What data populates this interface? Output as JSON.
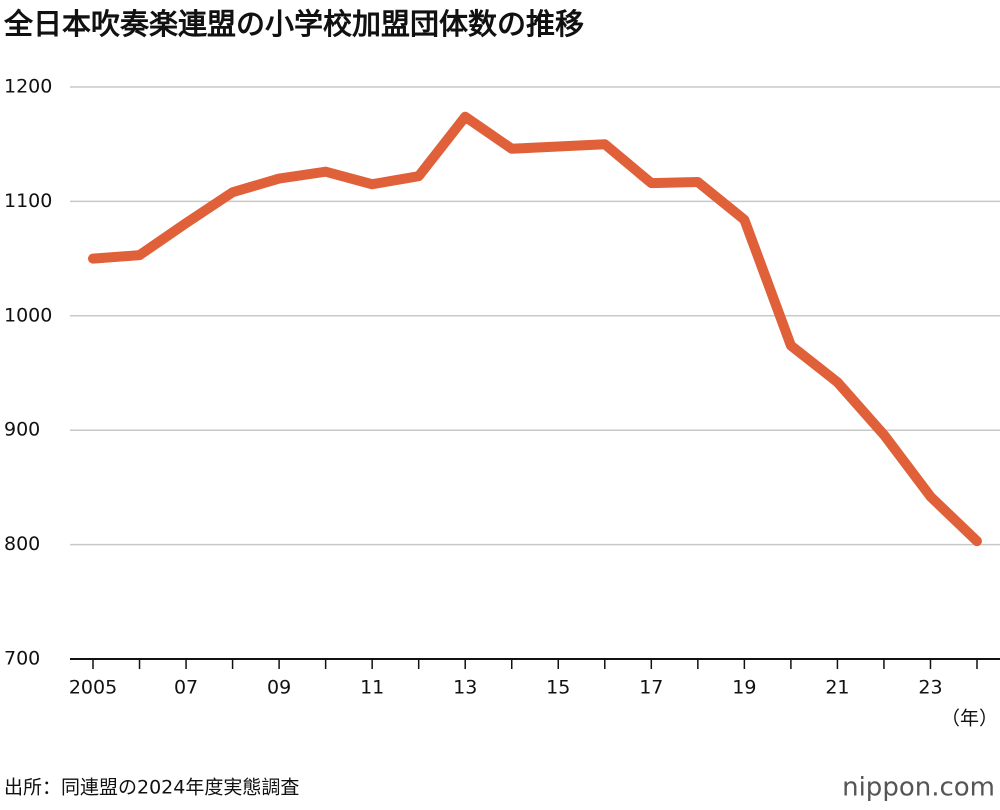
{
  "chart_data": {
    "type": "line",
    "title": "全日本吹奏楽連盟の小学校加盟団体数の推移",
    "categories": [
      "2005",
      null,
      "07",
      null,
      "09",
      null,
      "11",
      null,
      "13",
      null,
      "15",
      null,
      "17",
      null,
      "19",
      null,
      "21",
      null,
      "23",
      null
    ],
    "series": [
      {
        "name": "小学校加盟団体数",
        "color": "#e0603a",
        "values": [
          1050,
          1053,
          1081,
          1108,
          1120,
          1126,
          1115,
          1122,
          1174,
          1146,
          1148,
          1150,
          1116,
          1117,
          1084,
          974,
          942,
          896,
          842,
          803
        ]
      }
    ],
    "ylim": [
      700,
      1200
    ],
    "yticks": [
      700,
      800,
      900,
      1000,
      1100,
      1200
    ],
    "grid": true,
    "x_unit": "（年）",
    "source": "出所：同連盟の2024年度実態調査",
    "logo": "nippon.com"
  }
}
